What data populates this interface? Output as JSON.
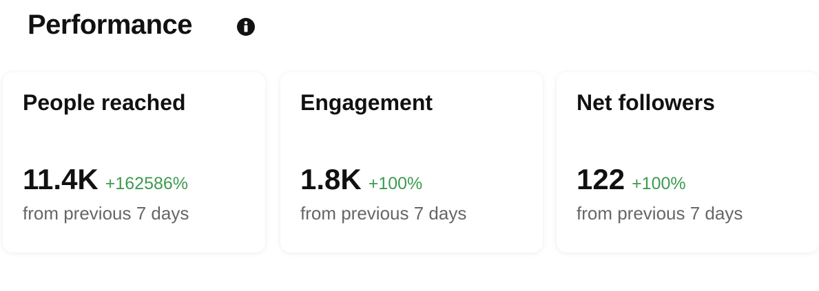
{
  "header": {
    "title": "Performance"
  },
  "cards": [
    {
      "label": "People reached",
      "value": "11.4K",
      "change": "+162586%",
      "note": "from previous 7 days"
    },
    {
      "label": "Engagement",
      "value": "1.8K",
      "change": "+100%",
      "note": "from previous 7 days"
    },
    {
      "label": "Net followers",
      "value": "122",
      "change": "+100%",
      "note": "from previous 7 days"
    }
  ]
}
